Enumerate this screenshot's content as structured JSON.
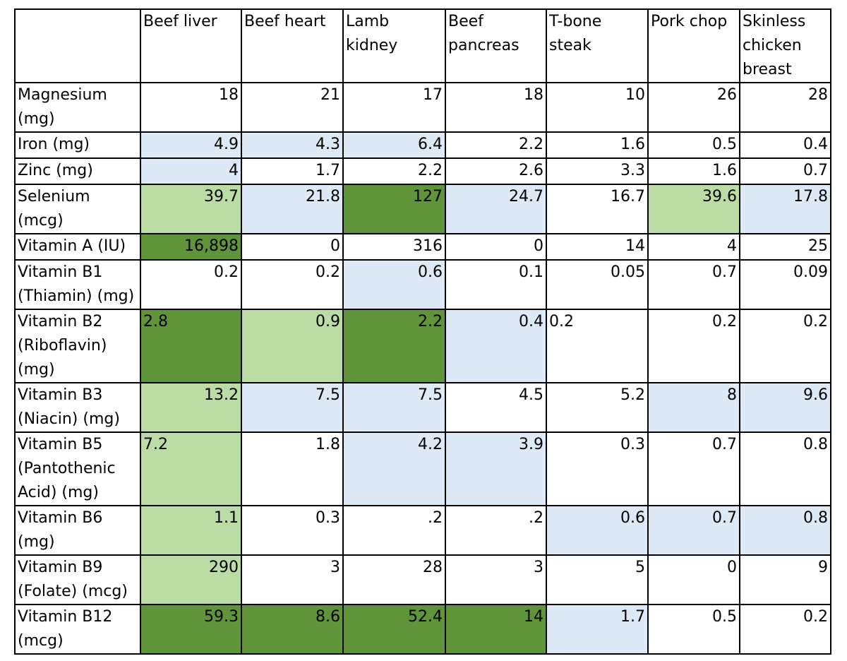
{
  "colors": {
    "none": "#ffffff",
    "light_blue": "#dee9f6",
    "light_green": "#bcdca5",
    "dark_green": "#5f943b"
  },
  "table": {
    "corner_label": "",
    "columns": [
      "Beef liver",
      "Beef heart",
      "Lamb kidney",
      "Beef pancreas",
      "T-bone steak",
      "Pork chop",
      "Skinless chicken breast"
    ],
    "rows": [
      {
        "label": "Magnesium (mg)",
        "values": [
          "18",
          "21",
          "17",
          "18",
          "10",
          "26",
          "28"
        ],
        "highlight": [
          "none",
          "none",
          "none",
          "none",
          "none",
          "none",
          "none"
        ]
      },
      {
        "label": "Iron (mg)",
        "values": [
          "4.9",
          "4.3",
          "6.4",
          "2.2",
          "1.6",
          "0.5",
          "0.4"
        ],
        "highlight": [
          "light_blue",
          "light_blue",
          "light_blue",
          "none",
          "none",
          "none",
          "none"
        ]
      },
      {
        "label": "Zinc (mg)",
        "values": [
          "4",
          "1.7",
          "2.2",
          "2.6",
          "3.3",
          "1.6",
          "0.7"
        ],
        "highlight": [
          "light_blue",
          "none",
          "none",
          "none",
          "none",
          "none",
          "none"
        ]
      },
      {
        "label": "Selenium (mcg)",
        "values": [
          "39.7",
          "21.8",
          "127",
          "24.7",
          "16.7",
          "39.6",
          "17.8"
        ],
        "highlight": [
          "light_green",
          "light_blue",
          "dark_green",
          "light_blue",
          "none",
          "light_green",
          "light_blue"
        ]
      },
      {
        "label": "Vitamin A (IU)",
        "values": [
          "16,898",
          "0",
          "316",
          "0",
          "14",
          "4",
          "25"
        ],
        "highlight": [
          "dark_green",
          "none",
          "none",
          "none",
          "none",
          "none",
          "none"
        ]
      },
      {
        "label": "Vitamin B1 (Thiamin) (mg)",
        "values": [
          "0.2",
          "0.2",
          "0.6",
          "0.1",
          "0.05",
          "0.7",
          "0.09"
        ],
        "highlight": [
          "none",
          "none",
          "light_blue",
          "none",
          "none",
          "none",
          "none"
        ]
      },
      {
        "label": "Vitamin B2 (Riboflavin) (mg)",
        "values": [
          "2.8",
          "0.9",
          "2.2",
          "0.4",
          "0.2",
          "0.2",
          "0.2"
        ],
        "highlight": [
          "dark_green",
          "light_green",
          "dark_green",
          "light_blue",
          "none",
          "none",
          "none"
        ]
      },
      {
        "label": "Vitamin B3 (Niacin) (mg)",
        "values": [
          "13.2",
          "7.5",
          "7.5",
          "4.5",
          "5.2",
          "8",
          "9.6"
        ],
        "highlight": [
          "light_green",
          "light_blue",
          "light_blue",
          "none",
          "none",
          "light_blue",
          "light_blue"
        ]
      },
      {
        "label": "Vitamin B5 (Pantothenic Acid) (mg)",
        "values": [
          "7.2",
          "1.8",
          "4.2",
          "3.9",
          "0.3",
          "0.7",
          "0.8"
        ],
        "highlight": [
          "light_green",
          "none",
          "light_blue",
          "light_blue",
          "none",
          "none",
          "none"
        ]
      },
      {
        "label": "Vitamin B6 (mg)",
        "values": [
          "1.1",
          "0.3",
          ".2",
          ".2",
          "0.6",
          "0.7",
          "0.8"
        ],
        "highlight": [
          "light_green",
          "none",
          "none",
          "none",
          "light_blue",
          "light_blue",
          "light_blue"
        ]
      },
      {
        "label": "Vitamin B9 (Folate) (mcg)",
        "values": [
          "290",
          "3",
          "28",
          "3",
          "5",
          "0",
          "9"
        ],
        "highlight": [
          "light_green",
          "none",
          "none",
          "none",
          "none",
          "none",
          "none"
        ]
      },
      {
        "label": "Vitamin B12 (mcg)",
        "values": [
          "59.3",
          "8.6",
          "52.4",
          "14",
          "1.7",
          "0.5",
          "0.2"
        ],
        "highlight": [
          "dark_green",
          "dark_green",
          "dark_green",
          "dark_green",
          "light_blue",
          "none",
          "none"
        ]
      }
    ]
  }
}
